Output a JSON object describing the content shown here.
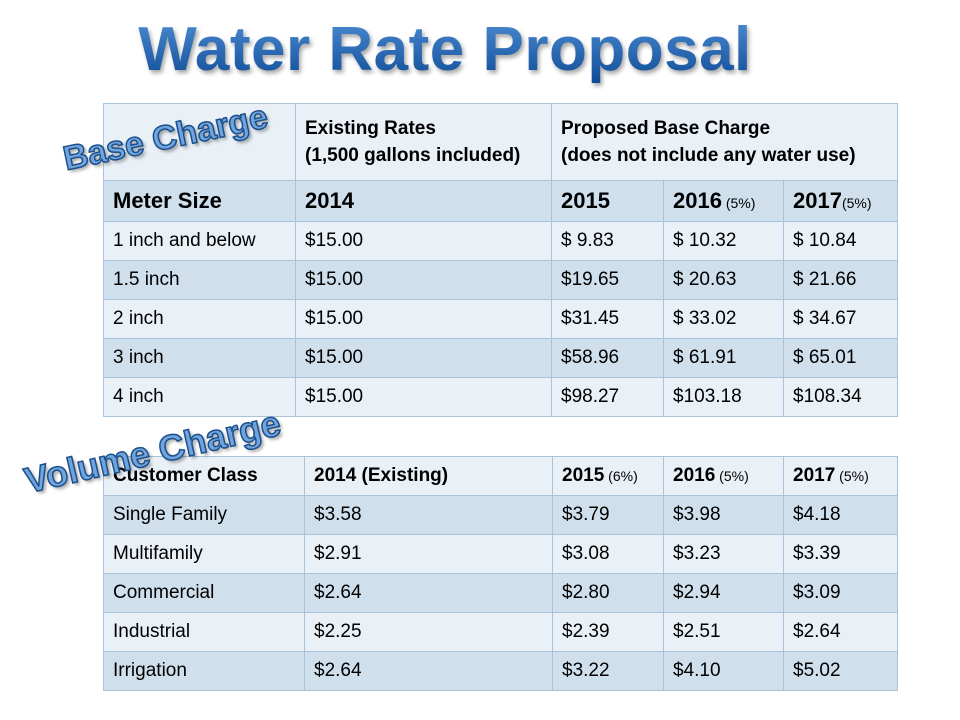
{
  "title": "Water Rate Proposal",
  "wordart": {
    "base_charge": "Base Charge",
    "volume_charge": "Volume Charge"
  },
  "base_table": {
    "group_headers": {
      "existing_line1": "Existing Rates",
      "existing_line2": "(1,500 gallons included)",
      "proposed_line1": "Proposed Base Charge",
      "proposed_line2": "(does not include any water use)"
    },
    "columns": [
      {
        "label": "Meter Size",
        "note": ""
      },
      {
        "label": "2014",
        "note": ""
      },
      {
        "label": "2015",
        "note": ""
      },
      {
        "label": "2016",
        "note": " (5%)"
      },
      {
        "label": "2017",
        "note": "(5%)"
      }
    ],
    "rows": [
      [
        "1 inch and below",
        "$15.00",
        "$  9.83",
        "$  10.32",
        "$  10.84"
      ],
      [
        "1.5 inch",
        "$15.00",
        "$19.65",
        "$  20.63",
        "$  21.66"
      ],
      [
        "2 inch",
        "$15.00",
        "$31.45",
        "$  33.02",
        "$  34.67"
      ],
      [
        "3 inch",
        "$15.00",
        "$58.96",
        "$  61.91",
        "$  65.01"
      ],
      [
        "4 inch",
        "$15.00",
        "$98.27",
        "$103.18",
        "$108.34"
      ]
    ]
  },
  "volume_table": {
    "columns": [
      {
        "label": "Customer Class",
        "note": ""
      },
      {
        "label": "2014 (Existing)",
        "note": ""
      },
      {
        "label": "2015",
        "note": " (6%)"
      },
      {
        "label": "2016",
        "note": " (5%)"
      },
      {
        "label": "2017",
        "note": " (5%)"
      }
    ],
    "rows": [
      [
        "Single Family",
        "$3.58",
        "$3.79",
        "$3.98",
        "$4.18"
      ],
      [
        "Multifamily",
        "$2.91",
        "$3.08",
        "$3.23",
        "$3.39"
      ],
      [
        "Commercial",
        "$2.64",
        "$2.80",
        "$2.94",
        "$3.09"
      ],
      [
        "Industrial",
        "$2.25",
        "$2.39",
        "$2.51",
        "$2.64"
      ],
      [
        "Irrigation",
        "$2.64",
        "$3.22",
        "$4.10",
        "$5.02"
      ]
    ]
  }
}
